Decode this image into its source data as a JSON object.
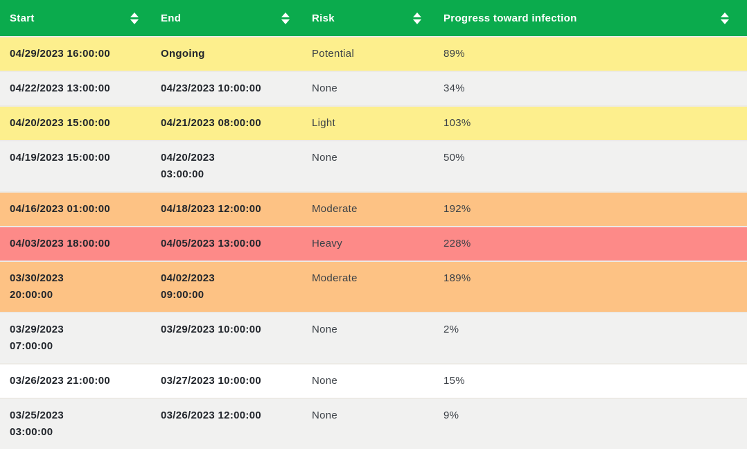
{
  "table": {
    "columns": [
      {
        "label": "Start"
      },
      {
        "label": "End"
      },
      {
        "label": "Risk"
      },
      {
        "label": "Progress toward infection"
      }
    ],
    "rows": [
      {
        "start": "04/29/2023 16:00:00",
        "end": "Ongoing",
        "risk": "Potential",
        "progress": "89%",
        "tone": "yellow"
      },
      {
        "start": "04/22/2023 13:00:00",
        "end": "04/23/2023 10:00:00",
        "risk": "None",
        "progress": "34%",
        "tone": "gray"
      },
      {
        "start": "04/20/2023 15:00:00",
        "end": "04/21/2023 08:00:00",
        "risk": "Light",
        "progress": "103%",
        "tone": "yellow"
      },
      {
        "start": "04/19/2023 15:00:00",
        "end": "04/20/2023\n03:00:00",
        "risk": "None",
        "progress": "50%",
        "tone": "gray"
      },
      {
        "start": "04/16/2023 01:00:00",
        "end": "04/18/2023 12:00:00",
        "risk": "Moderate",
        "progress": "192%",
        "tone": "orange"
      },
      {
        "start": "04/03/2023 18:00:00",
        "end": "04/05/2023 13:00:00",
        "risk": "Heavy",
        "progress": "228%",
        "tone": "red"
      },
      {
        "start": "03/30/2023\n20:00:00",
        "end": "04/02/2023\n09:00:00",
        "risk": "Moderate",
        "progress": "189%",
        "tone": "orange"
      },
      {
        "start": "03/29/2023\n07:00:00",
        "end": "03/29/2023 10:00:00",
        "risk": "None",
        "progress": "2%",
        "tone": "gray"
      },
      {
        "start": "03/26/2023 21:00:00",
        "end": "03/27/2023 10:00:00",
        "risk": "None",
        "progress": "15%",
        "tone": "white"
      },
      {
        "start": "03/25/2023\n03:00:00",
        "end": "03/26/2023 12:00:00",
        "risk": "None",
        "progress": "9%",
        "tone": "gray"
      }
    ]
  },
  "colors": {
    "header_bg": "#0bab4d",
    "header_text": "#ffffff",
    "row_yellow": "#fdef8d",
    "row_gray": "#f1f1f0",
    "row_white": "#ffffff",
    "row_orange": "#fdc284",
    "row_red": "#fd8a88",
    "date_text": "#22262c",
    "value_text": "#3c4147",
    "row_separator": "#eceae6"
  }
}
